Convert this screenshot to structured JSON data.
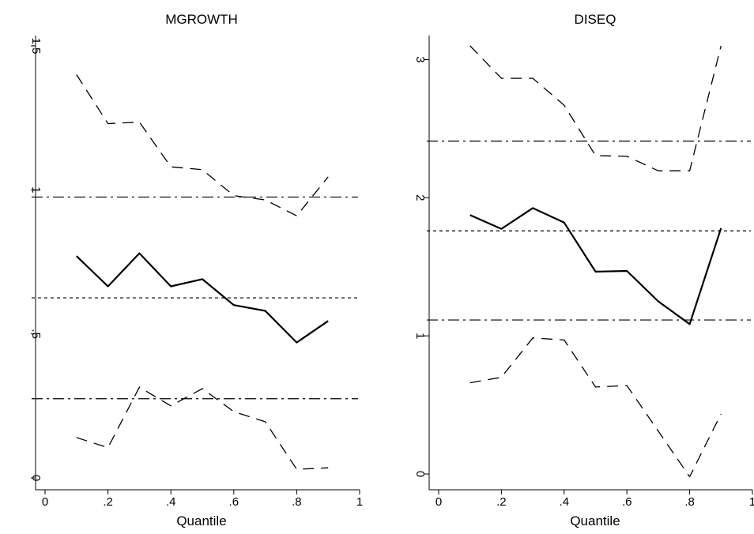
{
  "chart_data": [
    {
      "type": "line",
      "title": "MGROWTH",
      "xlabel": "Quantile",
      "ylabel": "",
      "xlim": [
        0,
        1
      ],
      "ylim": [
        0,
        1.5
      ],
      "x_ticks": [
        0,
        0.2,
        0.4,
        0.6,
        0.8,
        1
      ],
      "x_tick_labels": [
        "0",
        ".2",
        ".4",
        ".6",
        ".8",
        "1"
      ],
      "y_ticks": [
        0,
        0.5,
        1,
        1.5
      ],
      "y_tick_labels": [
        "0",
        ".5",
        "1",
        "1.5"
      ],
      "x": [
        0.1,
        0.2,
        0.3,
        0.4,
        0.5,
        0.6,
        0.7,
        0.8,
        0.9
      ],
      "series": [
        {
          "style": "solid",
          "values": [
            0.77,
            0.665,
            0.78,
            0.665,
            0.69,
            0.6,
            0.58,
            0.47,
            0.545
          ]
        },
        {
          "style": "dash",
          "values": [
            1.4,
            1.23,
            1.235,
            1.08,
            1.07,
            0.98,
            0.965,
            0.91,
            1.045
          ]
        },
        {
          "style": "dash",
          "values": [
            0.14,
            0.105,
            0.315,
            0.25,
            0.31,
            0.23,
            0.195,
            0.03,
            0.035
          ]
        }
      ],
      "hlines": [
        {
          "style": "dot",
          "y": 0.625
        },
        {
          "style": "dashdot",
          "y": 0.975
        },
        {
          "style": "dashdot",
          "y": 0.275
        }
      ]
    },
    {
      "type": "line",
      "title": "DISEQ",
      "xlabel": "Quantile",
      "ylabel": "",
      "xlim": [
        0,
        1
      ],
      "ylim": [
        0,
        3.1
      ],
      "x_ticks": [
        0,
        0.2,
        0.4,
        0.6,
        0.8,
        1
      ],
      "x_tick_labels": [
        "0",
        ".2",
        ".4",
        ".6",
        ".8",
        "1"
      ],
      "y_ticks": [
        0,
        1,
        2,
        3
      ],
      "y_tick_labels": [
        "0",
        "1",
        "2",
        "3"
      ],
      "x": [
        0.1,
        0.2,
        0.3,
        0.4,
        0.5,
        0.6,
        0.7,
        0.8,
        0.9
      ],
      "series": [
        {
          "style": "solid",
          "values": [
            1.875,
            1.775,
            1.925,
            1.82,
            1.465,
            1.47,
            1.25,
            1.085,
            1.78
          ]
        },
        {
          "style": "dash",
          "values": [
            3.1,
            2.865,
            2.865,
            2.67,
            2.305,
            2.3,
            2.195,
            2.195,
            3.1
          ]
        },
        {
          "style": "dash",
          "values": [
            0.66,
            0.7,
            0.985,
            0.97,
            0.63,
            0.64,
            0.31,
            -0.02,
            0.435
          ]
        }
      ],
      "hlines": [
        {
          "style": "dot",
          "y": 1.76
        },
        {
          "style": "dashdot",
          "y": 2.41
        },
        {
          "style": "dashdot",
          "y": 1.115
        }
      ]
    }
  ]
}
